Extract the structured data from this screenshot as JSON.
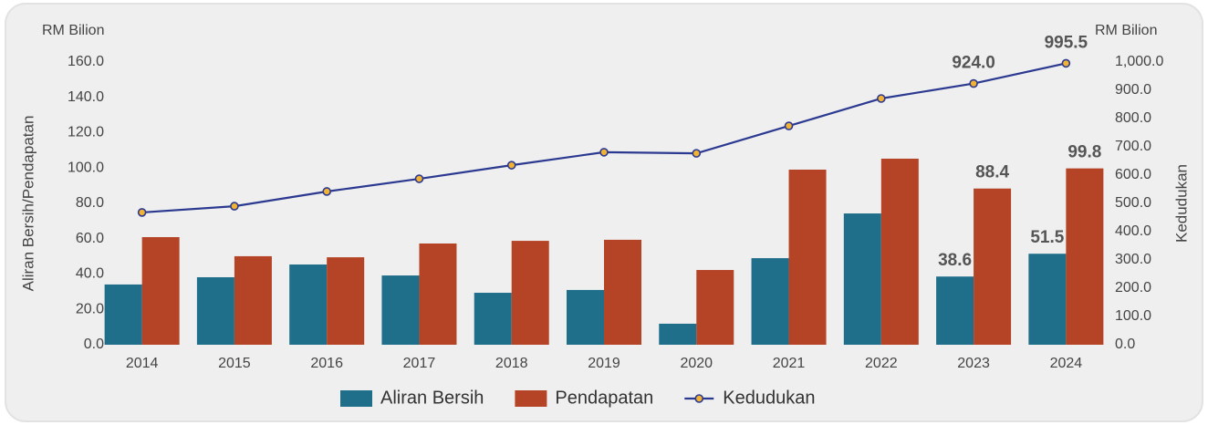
{
  "chart_data": {
    "type": "bar_line",
    "y_unit_left": "RM Bilion",
    "y_unit_right": "RM Bilion",
    "ylabel": "Aliran Bersih/Pendapatan",
    "y2label": "Kedudukan",
    "categories": [
      "2014",
      "2015",
      "2016",
      "2017",
      "2018",
      "2019",
      "2020",
      "2021",
      "2022",
      "2023",
      "2024"
    ],
    "series": [
      {
        "name": "Aliran Bersih",
        "type": "bar",
        "color": "#1f6e8a",
        "values": [
          34.1,
          38.2,
          45.4,
          39.2,
          29.4,
          31.0,
          11.9,
          49.0,
          74.3,
          38.6,
          51.5
        ],
        "value_labels": [
          null,
          null,
          null,
          null,
          null,
          null,
          null,
          null,
          null,
          "38.6",
          "51.5"
        ]
      },
      {
        "name": "Pendapatan",
        "type": "bar",
        "color": "#b54427",
        "values": [
          60.9,
          50.1,
          49.5,
          57.3,
          58.8,
          59.4,
          42.3,
          99.1,
          105.3,
          88.4,
          99.8
        ],
        "value_labels": [
          null,
          null,
          null,
          null,
          null,
          null,
          null,
          null,
          null,
          "88.4",
          "99.8"
        ]
      },
      {
        "name": "Kedudukan",
        "type": "line",
        "axis": "y2",
        "color": "#2b3990",
        "marker_color": "#f2b233",
        "values": [
          468,
          490,
          542,
          587,
          635,
          681,
          677,
          774,
          871,
          924,
          995.5
        ],
        "value_labels": [
          null,
          null,
          null,
          null,
          null,
          null,
          null,
          null,
          null,
          "924.0",
          "995.5"
        ]
      }
    ],
    "ylim": [
      0,
      160
    ],
    "yticks": [
      {
        "value": 0,
        "label": "0.0"
      },
      {
        "value": 20,
        "label": "20.0"
      },
      {
        "value": 40,
        "label": "40.0"
      },
      {
        "value": 60,
        "label": "60.0"
      },
      {
        "value": 80,
        "label": "80.0"
      },
      {
        "value": 100,
        "label": "100.0"
      },
      {
        "value": 120,
        "label": "120.0"
      },
      {
        "value": 140,
        "label": "140.0"
      },
      {
        "value": 160,
        "label": "160.0"
      }
    ],
    "y2lim": [
      0,
      1000
    ],
    "y2ticks": [
      {
        "value": 0,
        "label": "0.0"
      },
      {
        "value": 100,
        "label": "100.0"
      },
      {
        "value": 200,
        "label": "200.0"
      },
      {
        "value": 300,
        "label": "300.0"
      },
      {
        "value": 400,
        "label": "400.0"
      },
      {
        "value": 500,
        "label": "500.0"
      },
      {
        "value": 600,
        "label": "600.0"
      },
      {
        "value": 700,
        "label": "700.0"
      },
      {
        "value": 800,
        "label": "800.0"
      },
      {
        "value": 900,
        "label": "900.0"
      },
      {
        "value": 1000,
        "label": "1,000.0"
      }
    ],
    "legend": "bottom",
    "grid": false
  }
}
